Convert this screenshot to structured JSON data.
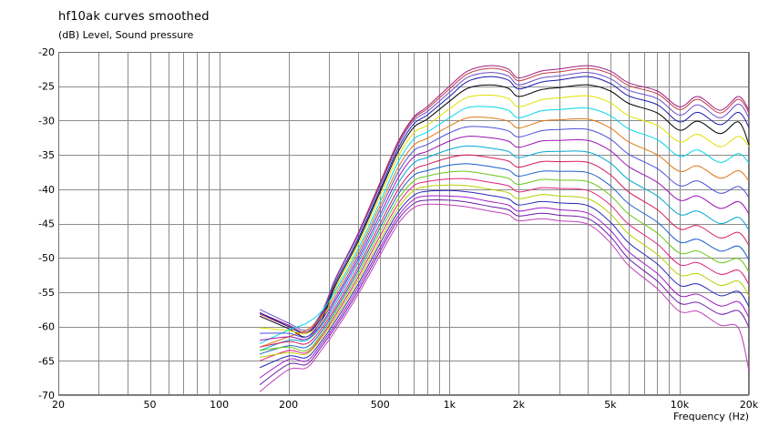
{
  "chart_data": {
    "type": "line",
    "title": "hf10ak curves smoothed",
    "ylabel": "(dB)  Level, Sound pressure",
    "xlabel": "Frequency  (Hz)",
    "x_scale": "log",
    "xlim": [
      20,
      20000
    ],
    "ylim": [
      -70,
      -20
    ],
    "grid": true,
    "x_tick_labels": [
      {
        "value": 20,
        "label": "20"
      },
      {
        "value": 50,
        "label": "50"
      },
      {
        "value": 100,
        "label": "100"
      },
      {
        "value": 200,
        "label": "200"
      },
      {
        "value": 500,
        "label": "500"
      },
      {
        "value": 1000,
        "label": "1k"
      },
      {
        "value": 2000,
        "label": "2k"
      },
      {
        "value": 5000,
        "label": "5k"
      },
      {
        "value": 10000,
        "label": "10k"
      },
      {
        "value": 20000,
        "label": "20k"
      }
    ],
    "y_tick_labels": [
      {
        "value": -20,
        "label": "-20"
      },
      {
        "value": -25,
        "label": "-25"
      },
      {
        "value": -30,
        "label": "-30"
      },
      {
        "value": -35,
        "label": "-35"
      },
      {
        "value": -40,
        "label": "-40"
      },
      {
        "value": -45,
        "label": "-45"
      },
      {
        "value": -50,
        "label": "-50"
      },
      {
        "value": -55,
        "label": "-55"
      },
      {
        "value": -60,
        "label": "-60"
      },
      {
        "value": -65,
        "label": "-65"
      },
      {
        "value": -70,
        "label": "-70"
      }
    ],
    "x": [
      150,
      200,
      240,
      280,
      320,
      400,
      500,
      600,
      700,
      800,
      1000,
      1200,
      1500,
      1800,
      2000,
      2500,
      3000,
      4000,
      5000,
      6000,
      8000,
      10000,
      12000,
      15000,
      18000,
      20000
    ],
    "series": [
      {
        "color": "#a01c78",
        "values": [
          -58.0,
          -59.8,
          -60.8,
          -58.0,
          -53.0,
          -46.5,
          -39.0,
          -33.0,
          -29.5,
          -28.0,
          -25.0,
          -22.8,
          -22.0,
          -22.5,
          -23.8,
          -22.8,
          -22.5,
          -22.0,
          -22.8,
          -24.5,
          -25.7,
          -28.0,
          -26.5,
          -28.5,
          -26.5,
          -28.5
        ]
      },
      {
        "color": "#c0394a",
        "values": [
          -58.2,
          -60.0,
          -61.0,
          -58.2,
          -53.2,
          -46.7,
          -39.2,
          -33.2,
          -29.7,
          -28.3,
          -25.4,
          -23.2,
          -22.4,
          -22.9,
          -24.2,
          -23.2,
          -22.9,
          -22.4,
          -23.2,
          -24.9,
          -26.1,
          -28.4,
          -26.9,
          -28.9,
          -26.9,
          -28.9
        ]
      },
      {
        "color": "#6a4fc8",
        "values": [
          -57.5,
          -59.5,
          -60.5,
          -57.8,
          -53.0,
          -46.8,
          -39.5,
          -33.5,
          -30.0,
          -28.7,
          -25.9,
          -23.7,
          -23.0,
          -23.5,
          -24.8,
          -23.8,
          -23.5,
          -23.0,
          -23.9,
          -25.6,
          -26.8,
          -29.2,
          -27.7,
          -29.6,
          -27.6,
          -29.6
        ]
      },
      {
        "color": "#1a1aa8",
        "values": [
          -58.0,
          -60.0,
          -61.0,
          -58.5,
          -53.6,
          -47.3,
          -40.0,
          -34.0,
          -30.5,
          -29.2,
          -26.5,
          -24.3,
          -23.6,
          -24.1,
          -25.4,
          -24.4,
          -24.1,
          -23.6,
          -24.6,
          -26.4,
          -27.7,
          -30.2,
          -28.8,
          -30.6,
          -28.8,
          -31.0
        ]
      },
      {
        "color": "#000000",
        "values": [
          -58.5,
          -60.3,
          -61.5,
          -58.9,
          -54.0,
          -47.7,
          -40.4,
          -34.5,
          -31.0,
          -29.8,
          -27.2,
          -25.3,
          -24.8,
          -25.3,
          -26.5,
          -25.5,
          -25.2,
          -24.8,
          -25.7,
          -27.5,
          -28.9,
          -31.4,
          -30.1,
          -31.9,
          -30.2,
          -33.5
        ]
      },
      {
        "color": "#e0e000",
        "values": [
          -60.2,
          -60.6,
          -61.0,
          -59.2,
          -54.5,
          -48.2,
          -41.0,
          -35.2,
          -31.8,
          -30.7,
          -28.3,
          -26.6,
          -26.3,
          -26.8,
          -28.0,
          -27.0,
          -26.7,
          -26.4,
          -27.4,
          -29.3,
          -30.7,
          -33.1,
          -32.0,
          -33.8,
          -32.3,
          -33.8
        ]
      },
      {
        "color": "#00d8e8",
        "values": [
          -62.5,
          -60.5,
          -59.5,
          -57.7,
          -54.8,
          -48.8,
          -41.8,
          -36.0,
          -32.7,
          -31.7,
          -29.6,
          -28.1,
          -28.0,
          -28.5,
          -29.6,
          -28.6,
          -28.4,
          -28.2,
          -29.3,
          -31.2,
          -32.8,
          -35.2,
          -34.3,
          -36.1,
          -34.8,
          -36.2
        ]
      },
      {
        "color": "#e07818",
        "values": [
          -63.0,
          -61.5,
          -60.5,
          -58.5,
          -55.3,
          -49.3,
          -42.4,
          -36.8,
          -33.6,
          -32.6,
          -30.8,
          -29.6,
          -29.6,
          -30.1,
          -31.1,
          -30.1,
          -29.9,
          -29.8,
          -31.1,
          -33.1,
          -35.0,
          -37.4,
          -36.6,
          -38.4,
          -37.3,
          -38.8
        ]
      },
      {
        "color": "#5050d8",
        "values": [
          -61.0,
          -61.0,
          -61.5,
          -59.0,
          -55.8,
          -49.8,
          -43.0,
          -37.5,
          -34.4,
          -33.5,
          -31.8,
          -30.9,
          -31.0,
          -31.5,
          -32.4,
          -31.5,
          -31.3,
          -31.3,
          -32.7,
          -34.9,
          -37.0,
          -39.5,
          -38.8,
          -40.6,
          -39.6,
          -41.2
        ]
      },
      {
        "color": "#9a14b4",
        "values": [
          -62.0,
          -61.5,
          -61.8,
          -59.5,
          -56.2,
          -50.3,
          -43.7,
          -38.3,
          -35.3,
          -34.5,
          -33.0,
          -32.3,
          -32.5,
          -33.0,
          -33.9,
          -33.0,
          -32.9,
          -32.9,
          -34.4,
          -36.7,
          -39.0,
          -41.6,
          -41.0,
          -42.8,
          -41.8,
          -43.6
        ]
      },
      {
        "color": "#00a8d0",
        "values": [
          -63.5,
          -62.0,
          -62.0,
          -59.8,
          -56.7,
          -50.8,
          -44.3,
          -39.1,
          -36.2,
          -35.4,
          -34.2,
          -33.7,
          -34.0,
          -34.5,
          -35.4,
          -34.6,
          -34.5,
          -34.6,
          -36.2,
          -38.6,
          -41.0,
          -43.7,
          -43.2,
          -45.0,
          -44.1,
          -46.0
        ]
      },
      {
        "color": "#d81a58",
        "values": [
          -63.0,
          -62.2,
          -62.5,
          -60.2,
          -57.2,
          -51.4,
          -45.0,
          -40.0,
          -37.2,
          -36.4,
          -35.4,
          -35.0,
          -35.4,
          -35.9,
          -36.8,
          -36.0,
          -36.0,
          -36.1,
          -37.9,
          -40.4,
          -43.0,
          -45.8,
          -45.3,
          -47.1,
          -46.3,
          -48.2
        ]
      },
      {
        "color": "#1a60c8",
        "values": [
          -64.0,
          -62.8,
          -63.0,
          -60.6,
          -57.6,
          -51.9,
          -45.6,
          -40.7,
          -38.0,
          -37.3,
          -36.5,
          -36.3,
          -36.7,
          -37.2,
          -38.1,
          -37.4,
          -37.4,
          -37.6,
          -39.5,
          -42.1,
          -44.8,
          -47.7,
          -47.3,
          -49.0,
          -48.3,
          -50.3
        ]
      },
      {
        "color": "#68c818",
        "values": [
          -63.5,
          -63.0,
          -63.5,
          -61.0,
          -58.0,
          -52.4,
          -46.2,
          -41.4,
          -38.8,
          -38.1,
          -37.5,
          -37.4,
          -37.9,
          -38.4,
          -39.3,
          -38.6,
          -38.7,
          -38.9,
          -40.9,
          -43.6,
          -46.4,
          -49.3,
          -49.0,
          -50.7,
          -50.1,
          -52.1
        ]
      },
      {
        "color": "#e0207a",
        "values": [
          -65.0,
          -63.5,
          -63.8,
          -61.3,
          -58.4,
          -52.9,
          -46.8,
          -42.1,
          -39.5,
          -38.9,
          -38.5,
          -38.5,
          -39.0,
          -39.5,
          -40.4,
          -39.8,
          -39.9,
          -40.2,
          -42.3,
          -45.1,
          -48.0,
          -51.0,
          -50.7,
          -52.4,
          -51.8,
          -53.9
        ]
      },
      {
        "color": "#b8d000",
        "values": [
          -64.5,
          -63.8,
          -64.0,
          -61.6,
          -58.8,
          -53.4,
          -47.4,
          -42.7,
          -40.2,
          -39.6,
          -39.4,
          -39.5,
          -40.0,
          -40.5,
          -41.4,
          -40.8,
          -41.0,
          -41.4,
          -43.6,
          -46.5,
          -49.5,
          -52.5,
          -52.3,
          -54.0,
          -53.4,
          -55.6
        ]
      },
      {
        "color": "#2828b8",
        "values": [
          -66.0,
          -64.3,
          -64.5,
          -62.0,
          -59.2,
          -53.9,
          -47.9,
          -43.3,
          -40.9,
          -40.3,
          -40.2,
          -40.4,
          -40.9,
          -41.4,
          -42.3,
          -41.8,
          -42.0,
          -42.4,
          -44.8,
          -47.8,
          -50.9,
          -54.0,
          -53.8,
          -55.5,
          -54.9,
          -57.1
        ]
      },
      {
        "color": "#a01cc8",
        "values": [
          -67.5,
          -64.8,
          -65.0,
          -62.4,
          -59.7,
          -54.4,
          -48.5,
          -43.9,
          -41.5,
          -41.0,
          -41.0,
          -41.2,
          -41.8,
          -42.3,
          -43.2,
          -42.7,
          -43.0,
          -43.5,
          -46.0,
          -49.1,
          -52.3,
          -55.5,
          -55.3,
          -57.0,
          -56.4,
          -58.7
        ]
      },
      {
        "color": "#6a1aa8",
        "values": [
          -68.5,
          -65.5,
          -65.5,
          -62.8,
          -60.1,
          -54.9,
          -49.0,
          -44.4,
          -42.1,
          -41.6,
          -41.6,
          -41.9,
          -42.5,
          -43.0,
          -43.9,
          -43.5,
          -43.8,
          -44.3,
          -46.9,
          -50.1,
          -53.4,
          -56.6,
          -56.5,
          -58.2,
          -57.7,
          -60.1
        ]
      },
      {
        "color": "#c040b8",
        "values": [
          -69.5,
          -66.3,
          -66.0,
          -63.3,
          -60.6,
          -55.4,
          -49.6,
          -45.0,
          -42.7,
          -42.2,
          -42.3,
          -42.6,
          -43.2,
          -43.7,
          -44.6,
          -44.3,
          -44.6,
          -45.1,
          -47.8,
          -51.1,
          -54.5,
          -57.8,
          -57.8,
          -59.8,
          -60.2,
          -66.5
        ]
      }
    ]
  }
}
